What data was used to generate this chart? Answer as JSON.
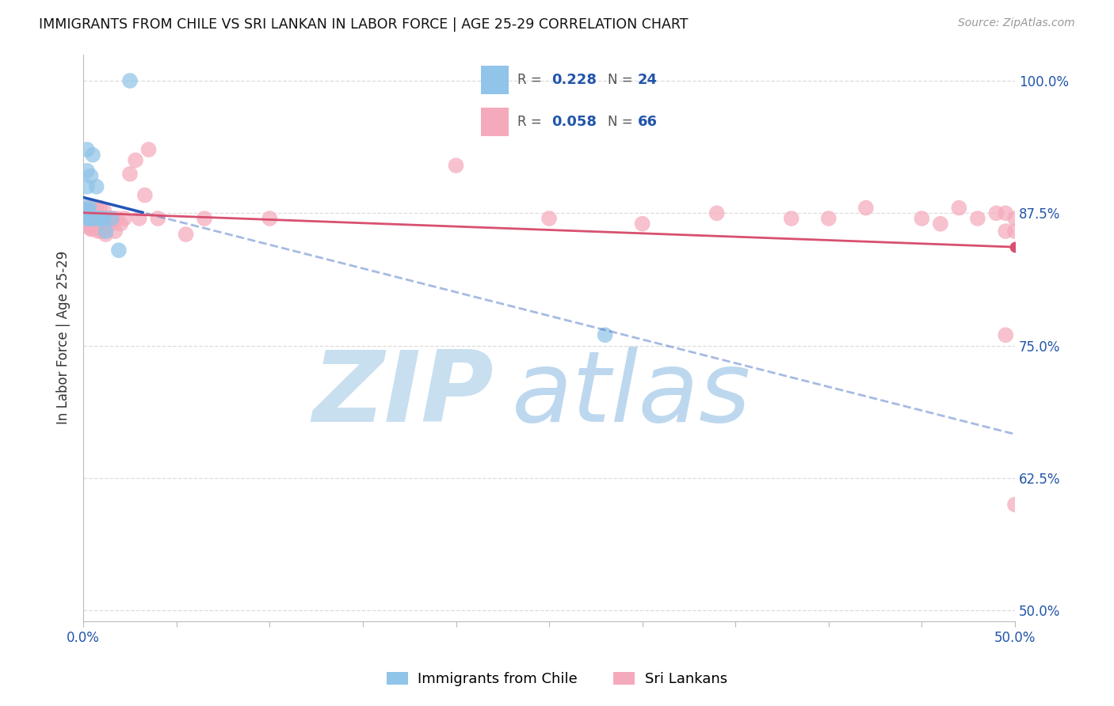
{
  "title": "IMMIGRANTS FROM CHILE VS SRI LANKAN IN LABOR FORCE | AGE 25-29 CORRELATION CHART",
  "source": "Source: ZipAtlas.com",
  "ylabel": "In Labor Force | Age 25-29",
  "xlim": [
    0.0,
    0.5
  ],
  "ylim": [
    0.49,
    1.025
  ],
  "xticks": [
    0.0,
    0.05,
    0.1,
    0.15,
    0.2,
    0.25,
    0.3,
    0.35,
    0.4,
    0.45,
    0.5
  ],
  "xtick_labels": [
    "0.0%",
    "",
    "",
    "",
    "",
    "",
    "",
    "",
    "",
    "",
    "50.0%"
  ],
  "yticks": [
    0.5,
    0.625,
    0.75,
    0.875,
    1.0
  ],
  "ytick_labels": [
    "50.0%",
    "62.5%",
    "75.0%",
    "87.5%",
    "100.0%"
  ],
  "legend_r_chile": "0.228",
  "legend_n_chile": "24",
  "legend_r_srilanka": "0.058",
  "legend_n_srilanka": "66",
  "chile_color": "#90C4E8",
  "srilanka_color": "#F5AABB",
  "chile_line_color": "#2255B8",
  "srilanka_line_color": "#D85070",
  "watermark_zip_color": "#C8DFF0",
  "watermark_atlas_color": "#BDD8EE",
  "chile_x": [
    0.001,
    0.001,
    0.001,
    0.002,
    0.002,
    0.002,
    0.002,
    0.003,
    0.003,
    0.003,
    0.004,
    0.004,
    0.005,
    0.006,
    0.007,
    0.008,
    0.009,
    0.01,
    0.011,
    0.012,
    0.015,
    0.019,
    0.025,
    0.28
  ],
  "chile_y": [
    0.872,
    0.878,
    0.875,
    0.87,
    0.9,
    0.915,
    0.935,
    0.87,
    0.878,
    0.882,
    0.87,
    0.91,
    0.93,
    0.87,
    0.9,
    0.87,
    0.87,
    0.87,
    0.87,
    0.858,
    0.87,
    0.84,
    1.0,
    0.76
  ],
  "srilanka_x": [
    0.001,
    0.001,
    0.001,
    0.002,
    0.002,
    0.002,
    0.003,
    0.003,
    0.003,
    0.003,
    0.004,
    0.004,
    0.004,
    0.005,
    0.005,
    0.005,
    0.006,
    0.006,
    0.007,
    0.007,
    0.007,
    0.008,
    0.008,
    0.009,
    0.009,
    0.01,
    0.01,
    0.011,
    0.011,
    0.012,
    0.012,
    0.013,
    0.014,
    0.015,
    0.016,
    0.017,
    0.018,
    0.02,
    0.022,
    0.025,
    0.028,
    0.03,
    0.033,
    0.035,
    0.04,
    0.055,
    0.065,
    0.1,
    0.2,
    0.25,
    0.3,
    0.34,
    0.38,
    0.4,
    0.42,
    0.45,
    0.46,
    0.47,
    0.48,
    0.49,
    0.495,
    0.5,
    0.495,
    0.5,
    0.495,
    0.5
  ],
  "srilanka_y": [
    0.87,
    0.878,
    0.875,
    0.87,
    0.878,
    0.865,
    0.87,
    0.875,
    0.862,
    0.88,
    0.87,
    0.86,
    0.878,
    0.875,
    0.87,
    0.86,
    0.878,
    0.865,
    0.88,
    0.87,
    0.862,
    0.872,
    0.858,
    0.88,
    0.87,
    0.87,
    0.858,
    0.878,
    0.865,
    0.87,
    0.855,
    0.87,
    0.87,
    0.865,
    0.87,
    0.858,
    0.87,
    0.865,
    0.87,
    0.912,
    0.925,
    0.87,
    0.892,
    0.935,
    0.87,
    0.855,
    0.87,
    0.87,
    0.92,
    0.87,
    0.865,
    0.875,
    0.87,
    0.87,
    0.88,
    0.87,
    0.865,
    0.88,
    0.87,
    0.875,
    0.858,
    0.87,
    0.875,
    0.858,
    0.76,
    0.6
  ]
}
